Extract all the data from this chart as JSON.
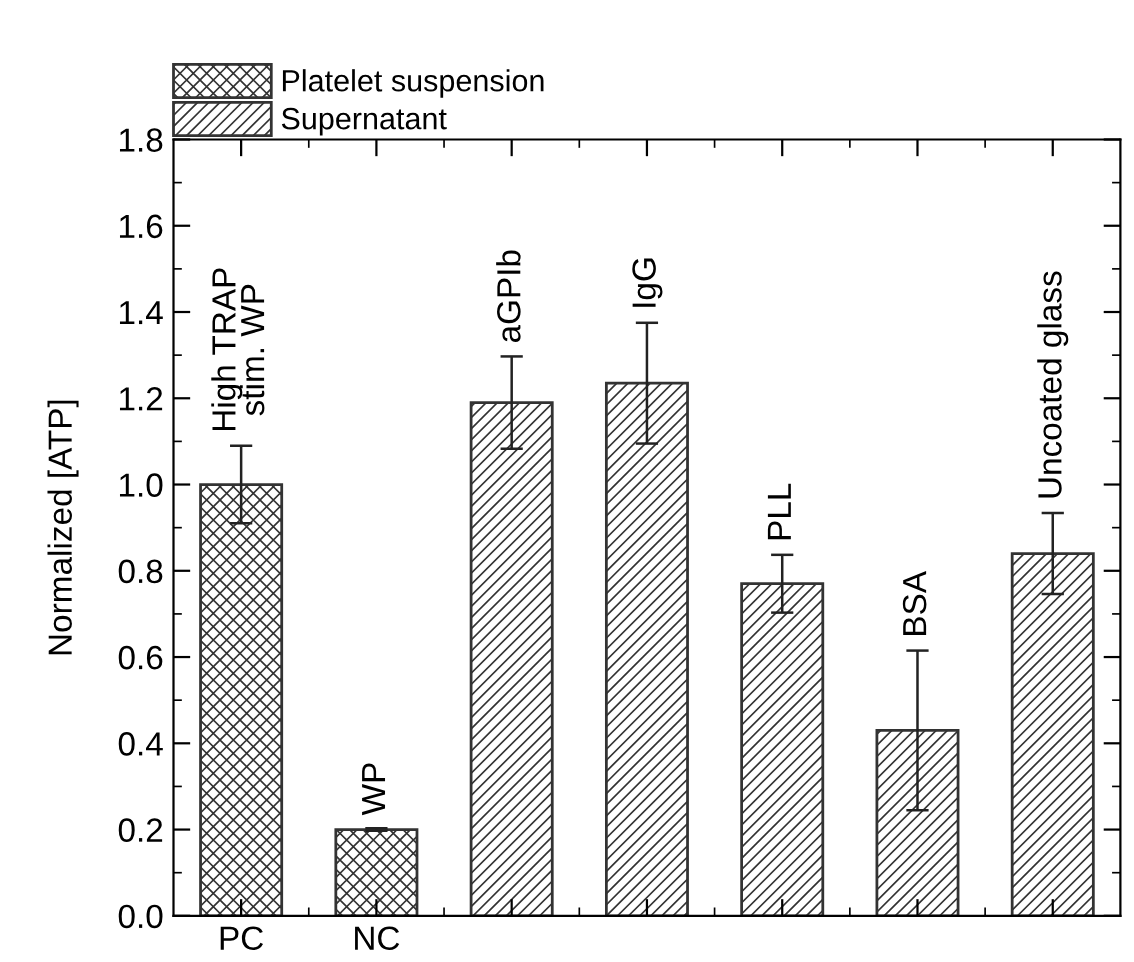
{
  "chart_data": {
    "type": "bar",
    "ylabel": "Normalized [ATP]",
    "categories": [
      "PC",
      "NC",
      null,
      null,
      null,
      null,
      null
    ],
    "series": [
      {
        "name": "Platelet suspension",
        "color": "#333333",
        "values": [
          1.0,
          0.2,
          null,
          null,
          null,
          null,
          null
        ],
        "errors": [
          0.09,
          0.003,
          null,
          null,
          null,
          null,
          null
        ]
      },
      {
        "name": "Supernatant",
        "color": "#333333",
        "values": [
          null,
          null,
          1.19,
          1.235,
          0.77,
          0.43,
          0.84
        ],
        "errors": [
          null,
          null,
          0.107,
          0.14,
          0.067,
          0.185,
          0.094
        ]
      }
    ],
    "annotations": [
      "High TRAP\nstim. WP",
      "WP",
      "aGPIb",
      "IgG",
      "PLL",
      "BSA",
      "Uncoated glass"
    ],
    "ylim": [
      0,
      1.8
    ],
    "yticks": [
      {
        "value": 0,
        "label": "0.0"
      },
      0.2,
      0.4,
      0.6,
      0.8,
      {
        "value": 1,
        "label": "1.0"
      },
      1.2,
      1.4,
      1.6,
      1.8
    ],
    "grid": false,
    "legend": "top left"
  }
}
